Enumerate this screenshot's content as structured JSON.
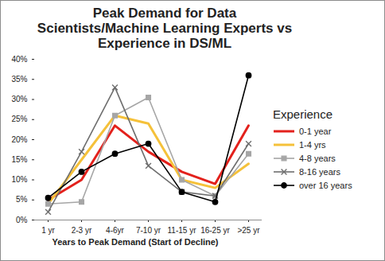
{
  "chart_data": {
    "type": "line",
    "title": "Peak Demand for Data Scientists/Machine Learning Experts vs Experience in DS/ML",
    "x_label": "Years to Peak Demand (Start of Decline)",
    "legend_title": "Experience",
    "legend": "right",
    "grid": false,
    "categories": [
      "1 yr",
      "2-3 yr",
      "4-6yr",
      "7-10 yr",
      "11-15 yr",
      "16-25 yr",
      ">25 yr"
    ],
    "ylim": [
      0,
      40
    ],
    "yticks": [
      {
        "value": 0,
        "label": "0%"
      },
      {
        "value": 5,
        "label": "5%"
      },
      {
        "value": 10,
        "label": "10%"
      },
      {
        "value": 15,
        "label": "15%"
      },
      {
        "value": 20,
        "label": "20%"
      },
      {
        "value": 25,
        "label": "25%"
      },
      {
        "value": 30,
        "label": "30%"
      },
      {
        "value": 35,
        "label": "35%"
      },
      {
        "value": 40,
        "label": "40%"
      }
    ],
    "series": [
      {
        "name": "0-1 year",
        "color": "#e3211c",
        "values": [
          5,
          10,
          23.5,
          17,
          12,
          9,
          23.5
        ]
      },
      {
        "name": "1-4 yrs",
        "color": "#f5c13a",
        "values": [
          4,
          15,
          26,
          24,
          10,
          8,
          14
        ]
      },
      {
        "name": "4-8 years",
        "color": "#a6a6a6",
        "marker": "square",
        "values": [
          4,
          4.5,
          26,
          30.5,
          10,
          6,
          16.5
        ]
      },
      {
        "name": "8-16 years",
        "color": "#6e6e6e",
        "marker": "x",
        "values": [
          2,
          17,
          33,
          13.5,
          7,
          6,
          19
        ]
      },
      {
        "name": "over 16 years",
        "color": "#000000",
        "marker": "circle",
        "values": [
          5.5,
          12,
          16.5,
          19,
          7,
          4.5,
          36
        ]
      }
    ]
  }
}
